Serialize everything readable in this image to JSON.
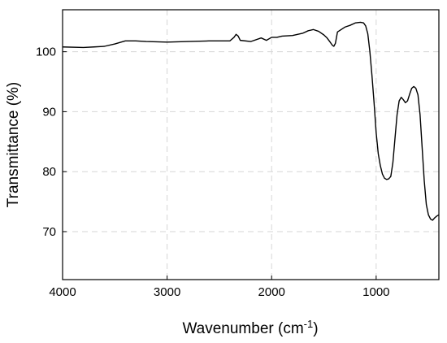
{
  "chart_data": {
    "type": "line",
    "xlabel": "Wavenumber (cm",
    "xlabel_sup": "-1",
    "xlabel_close": ")",
    "ylabel": "Transmittance (%)",
    "x_reversed": true,
    "xlim": [
      4000,
      400
    ],
    "ylim": [
      62,
      107
    ],
    "grid": true,
    "xticks": [
      4000,
      3000,
      2000,
      1000
    ],
    "xtick_labels": [
      "4000",
      "3000",
      "2000",
      "1000"
    ],
    "yticks": [
      70,
      80,
      90,
      100
    ],
    "ytick_labels": [
      "70",
      "80",
      "90",
      "100"
    ],
    "line_color": "#000000",
    "series": [
      {
        "x": [
          4000,
          3800,
          3700,
          3600,
          3500,
          3400,
          3300,
          3200,
          3000,
          2800,
          2600,
          2400,
          2360,
          2340,
          2320,
          2300,
          2200,
          2100,
          2050,
          2000,
          1950,
          1900,
          1800,
          1700,
          1650,
          1600,
          1550,
          1500,
          1470,
          1440,
          1420,
          1405,
          1390,
          1370,
          1300,
          1250,
          1200,
          1150,
          1120,
          1100,
          1080,
          1060,
          1040,
          1020,
          1000,
          980,
          960,
          940,
          920,
          900,
          880,
          860,
          840,
          820,
          800,
          780,
          760,
          740,
          720,
          700,
          680,
          660,
          640,
          620,
          600,
          580,
          560,
          540,
          520,
          500,
          480,
          460,
          440,
          420,
          400
        ],
        "y": [
          100.8,
          100.7,
          100.8,
          100.9,
          101.3,
          101.8,
          101.8,
          101.7,
          101.6,
          101.7,
          101.8,
          101.8,
          102.4,
          102.9,
          102.6,
          101.9,
          101.7,
          102.3,
          101.9,
          102.4,
          102.4,
          102.6,
          102.7,
          103.1,
          103.5,
          103.7,
          103.4,
          102.8,
          102.3,
          101.6,
          101.1,
          100.9,
          101.4,
          103.3,
          104.1,
          104.4,
          104.8,
          104.9,
          104.8,
          104.3,
          103.0,
          100.0,
          96.0,
          91.5,
          86.5,
          83.0,
          81.0,
          79.6,
          78.9,
          78.7,
          78.8,
          79.2,
          81.5,
          85.5,
          89.5,
          91.8,
          92.4,
          92.0,
          91.5,
          91.8,
          92.9,
          93.9,
          94.2,
          93.9,
          92.8,
          89.5,
          84.0,
          78.5,
          74.5,
          72.8,
          72.1,
          71.9,
          72.3,
          72.6,
          72.8
        ]
      }
    ]
  }
}
